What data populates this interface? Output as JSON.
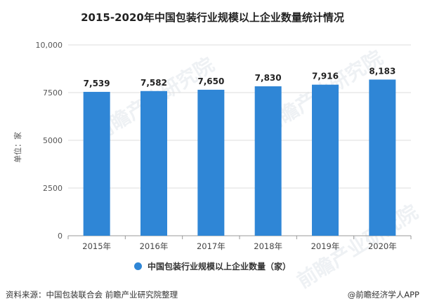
{
  "title": "2015-2020年中国包装行业规模以上企业数量统计情况",
  "y_unit_label": "单位：家",
  "legend_label": "中国包装行业规模以上企业数量（家）",
  "source_text": "资料来源：中国包装联合会 前瞻产业研究院整理",
  "brand_text": "@前瞻经济学人APP",
  "watermark_text": "前瞻产业研究院",
  "colors": {
    "bar": "#2f86d6",
    "grid": "#dddddd",
    "axis": "#999999",
    "text": "#333333"
  },
  "chart_data": {
    "type": "bar",
    "title": "2015-2020年中国包装行业规模以上企业数量统计情况",
    "xlabel": "",
    "ylabel": "单位：家",
    "categories": [
      "2015年",
      "2016年",
      "2017年",
      "2018年",
      "2019年",
      "2020年"
    ],
    "series": [
      {
        "name": "中国包装行业规模以上企业数量（家）",
        "values": [
          7539,
          7582,
          7650,
          7830,
          7916,
          8183
        ]
      }
    ],
    "data_labels": [
      "7,539",
      "7,582",
      "7,650",
      "7,830",
      "7,916",
      "8,183"
    ],
    "ylim": [
      0,
      10000
    ],
    "yticks": [
      0,
      2500,
      5000,
      7500,
      10000
    ],
    "ytick_labels": [
      "0",
      "2500",
      "5000",
      "7500",
      "10,000"
    ],
    "grid": true,
    "legend_position": "bottom"
  }
}
